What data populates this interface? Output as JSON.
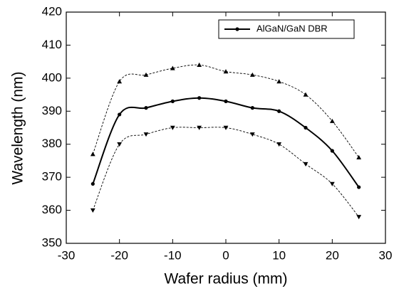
{
  "chart_data": {
    "type": "line",
    "x_label": "Wafer radius (mm)",
    "y_label": "Wavelength (nm)",
    "x": [
      -25,
      -20,
      -15,
      -10,
      -5,
      0,
      5,
      10,
      15,
      20,
      25
    ],
    "series": [
      {
        "name": "AlGaN/GaN DBR",
        "color": "#000000",
        "line_style": "solid",
        "marker": "circle",
        "values": [
          368,
          389,
          391,
          393,
          394,
          393,
          391,
          390,
          385,
          378,
          367
        ]
      },
      {
        "color": "#000000",
        "line_style": "dashed",
        "marker": "triangle-up",
        "values": [
          377,
          399,
          401,
          403,
          404,
          402,
          401,
          399,
          395,
          387,
          376
        ]
      },
      {
        "color": "#000000",
        "line_style": "dashed",
        "marker": "triangle-down",
        "values": [
          360,
          380,
          383,
          385,
          385,
          385,
          383,
          380,
          374,
          368,
          358
        ]
      }
    ],
    "xlim": [
      -30,
      30
    ],
    "xticks": [
      -30,
      -20,
      -10,
      0,
      10,
      20,
      30
    ],
    "ylim": [
      350,
      420
    ],
    "yticks": [
      350,
      360,
      370,
      380,
      390,
      400,
      410,
      420
    ],
    "grid": false,
    "legend": "upper right"
  }
}
